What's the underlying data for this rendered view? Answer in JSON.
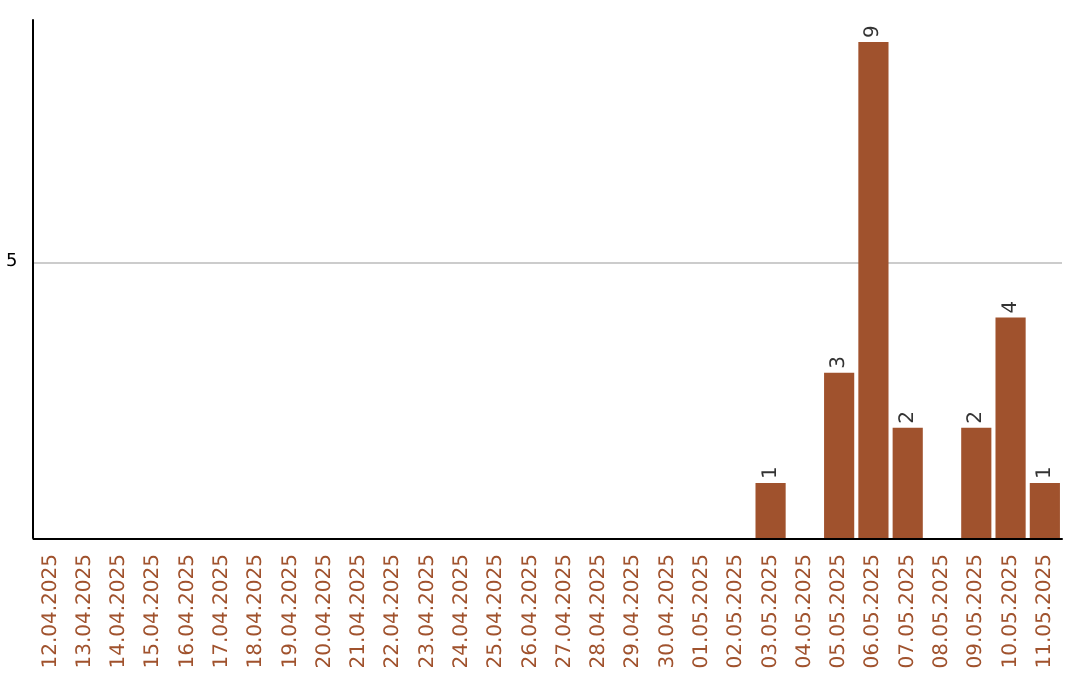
{
  "chart_data": {
    "type": "bar",
    "categories": [
      "12.04.2025",
      "13.04.2025",
      "14.04.2025",
      "15.04.2025",
      "16.04.2025",
      "17.04.2025",
      "18.04.2025",
      "19.04.2025",
      "20.04.2025",
      "21.04.2025",
      "22.04.2025",
      "23.04.2025",
      "24.04.2025",
      "25.04.2025",
      "26.04.2025",
      "27.04.2025",
      "28.04.2025",
      "29.04.2025",
      "30.04.2025",
      "01.05.2025",
      "02.05.2025",
      "03.05.2025",
      "04.05.2025",
      "05.05.2025",
      "06.05.2025",
      "07.05.2025",
      "08.05.2025",
      "09.05.2025",
      "10.05.2025",
      "11.05.2025"
    ],
    "values": [
      null,
      null,
      null,
      null,
      null,
      null,
      null,
      null,
      null,
      null,
      null,
      null,
      null,
      null,
      null,
      null,
      null,
      null,
      null,
      null,
      null,
      1,
      null,
      3,
      9,
      2,
      null,
      2,
      4,
      1
    ],
    "data_labels": true,
    "color": "#a0522d",
    "ylim": [
      0,
      9.4
    ],
    "yticks": [
      5
    ],
    "grid": "y"
  }
}
